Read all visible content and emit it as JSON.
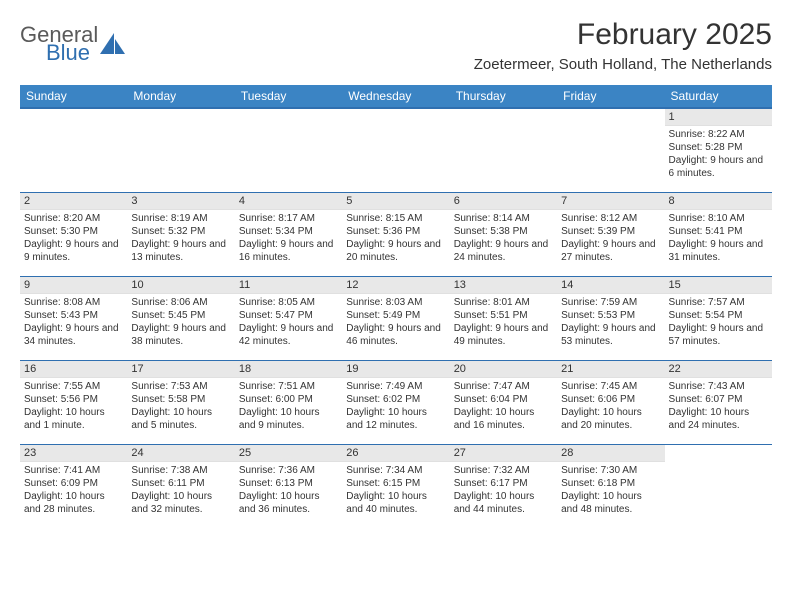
{
  "logo": {
    "word1": "General",
    "word2": "Blue",
    "text_color": "#5a5a5a",
    "accent_color": "#2f6fb0",
    "shape_color": "#2f6fb0"
  },
  "title": "February 2025",
  "location": "Zoetermeer, South Holland, The Netherlands",
  "colors": {
    "header_bg": "#3b84c4",
    "header_border": "#2f6fb0",
    "daynum_bg": "#e8e8e8",
    "text": "#333333"
  },
  "weekdays": [
    "Sunday",
    "Monday",
    "Tuesday",
    "Wednesday",
    "Thursday",
    "Friday",
    "Saturday"
  ],
  "first_weekday_index": 6,
  "days": [
    {
      "n": 1,
      "sunrise": "8:22 AM",
      "sunset": "5:28 PM",
      "daylight": "9 hours and 6 minutes."
    },
    {
      "n": 2,
      "sunrise": "8:20 AM",
      "sunset": "5:30 PM",
      "daylight": "9 hours and 9 minutes."
    },
    {
      "n": 3,
      "sunrise": "8:19 AM",
      "sunset": "5:32 PM",
      "daylight": "9 hours and 13 minutes."
    },
    {
      "n": 4,
      "sunrise": "8:17 AM",
      "sunset": "5:34 PM",
      "daylight": "9 hours and 16 minutes."
    },
    {
      "n": 5,
      "sunrise": "8:15 AM",
      "sunset": "5:36 PM",
      "daylight": "9 hours and 20 minutes."
    },
    {
      "n": 6,
      "sunrise": "8:14 AM",
      "sunset": "5:38 PM",
      "daylight": "9 hours and 24 minutes."
    },
    {
      "n": 7,
      "sunrise": "8:12 AM",
      "sunset": "5:39 PM",
      "daylight": "9 hours and 27 minutes."
    },
    {
      "n": 8,
      "sunrise": "8:10 AM",
      "sunset": "5:41 PM",
      "daylight": "9 hours and 31 minutes."
    },
    {
      "n": 9,
      "sunrise": "8:08 AM",
      "sunset": "5:43 PM",
      "daylight": "9 hours and 34 minutes."
    },
    {
      "n": 10,
      "sunrise": "8:06 AM",
      "sunset": "5:45 PM",
      "daylight": "9 hours and 38 minutes."
    },
    {
      "n": 11,
      "sunrise": "8:05 AM",
      "sunset": "5:47 PM",
      "daylight": "9 hours and 42 minutes."
    },
    {
      "n": 12,
      "sunrise": "8:03 AM",
      "sunset": "5:49 PM",
      "daylight": "9 hours and 46 minutes."
    },
    {
      "n": 13,
      "sunrise": "8:01 AM",
      "sunset": "5:51 PM",
      "daylight": "9 hours and 49 minutes."
    },
    {
      "n": 14,
      "sunrise": "7:59 AM",
      "sunset": "5:53 PM",
      "daylight": "9 hours and 53 minutes."
    },
    {
      "n": 15,
      "sunrise": "7:57 AM",
      "sunset": "5:54 PM",
      "daylight": "9 hours and 57 minutes."
    },
    {
      "n": 16,
      "sunrise": "7:55 AM",
      "sunset": "5:56 PM",
      "daylight": "10 hours and 1 minute."
    },
    {
      "n": 17,
      "sunrise": "7:53 AM",
      "sunset": "5:58 PM",
      "daylight": "10 hours and 5 minutes."
    },
    {
      "n": 18,
      "sunrise": "7:51 AM",
      "sunset": "6:00 PM",
      "daylight": "10 hours and 9 minutes."
    },
    {
      "n": 19,
      "sunrise": "7:49 AM",
      "sunset": "6:02 PM",
      "daylight": "10 hours and 12 minutes."
    },
    {
      "n": 20,
      "sunrise": "7:47 AM",
      "sunset": "6:04 PM",
      "daylight": "10 hours and 16 minutes."
    },
    {
      "n": 21,
      "sunrise": "7:45 AM",
      "sunset": "6:06 PM",
      "daylight": "10 hours and 20 minutes."
    },
    {
      "n": 22,
      "sunrise": "7:43 AM",
      "sunset": "6:07 PM",
      "daylight": "10 hours and 24 minutes."
    },
    {
      "n": 23,
      "sunrise": "7:41 AM",
      "sunset": "6:09 PM",
      "daylight": "10 hours and 28 minutes."
    },
    {
      "n": 24,
      "sunrise": "7:38 AM",
      "sunset": "6:11 PM",
      "daylight": "10 hours and 32 minutes."
    },
    {
      "n": 25,
      "sunrise": "7:36 AM",
      "sunset": "6:13 PM",
      "daylight": "10 hours and 36 minutes."
    },
    {
      "n": 26,
      "sunrise": "7:34 AM",
      "sunset": "6:15 PM",
      "daylight": "10 hours and 40 minutes."
    },
    {
      "n": 27,
      "sunrise": "7:32 AM",
      "sunset": "6:17 PM",
      "daylight": "10 hours and 44 minutes."
    },
    {
      "n": 28,
      "sunrise": "7:30 AM",
      "sunset": "6:18 PM",
      "daylight": "10 hours and 48 minutes."
    }
  ],
  "labels": {
    "sunrise": "Sunrise:",
    "sunset": "Sunset:",
    "daylight": "Daylight:"
  }
}
